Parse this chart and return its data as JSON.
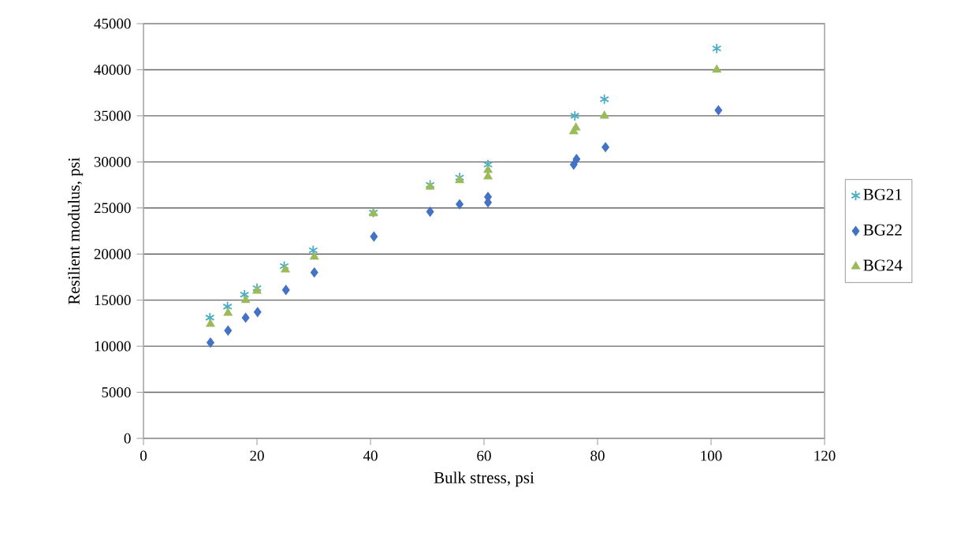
{
  "chart_data": {
    "type": "scatter",
    "xlabel": "Bulk stress, psi",
    "ylabel": "Resilient modulus, psi",
    "xlim": [
      0,
      120
    ],
    "ylim": [
      0,
      45000
    ],
    "xticks": [
      0,
      20,
      40,
      60,
      80,
      100,
      120
    ],
    "yticks": [
      0,
      5000,
      10000,
      15000,
      20000,
      25000,
      30000,
      35000,
      40000,
      45000
    ],
    "grid": "y",
    "legend": "right",
    "series": [
      {
        "name": "BG21",
        "color": "#4bacc6",
        "marker": "cross",
        "x": [
          11.7,
          14.8,
          17.8,
          20,
          24.8,
          29.9,
          40.5,
          50.5,
          55.7,
          60.7,
          76,
          81.2,
          101
        ],
        "values": [
          13100,
          14300,
          15600,
          16300,
          18700,
          20400,
          24500,
          27500,
          28300,
          29700,
          35000,
          36800,
          42300
        ]
      },
      {
        "name": "BG22",
        "color": "#4472c4",
        "marker": "diamond",
        "x": [
          11.8,
          14.9,
          18,
          20.1,
          25.1,
          30.1,
          40.6,
          50.5,
          55.7,
          60.7,
          60.7,
          75.8,
          76.3,
          81.4,
          101.3
        ],
        "values": [
          10400,
          11700,
          13100,
          13700,
          16100,
          18000,
          21900,
          24600,
          25400,
          26200,
          25600,
          29700,
          30300,
          31600,
          35600
        ]
      },
      {
        "name": "BG24",
        "color": "#9bbb59",
        "marker": "triangle",
        "x": [
          11.8,
          14.9,
          18,
          20,
          25,
          30.1,
          40.5,
          50.5,
          55.7,
          60.7,
          60.7,
          75.8,
          76.2,
          81.2,
          101
        ],
        "values": [
          12400,
          13600,
          15000,
          16000,
          18300,
          19700,
          24400,
          27300,
          28000,
          28400,
          29100,
          33300,
          33700,
          35000,
          40000
        ]
      }
    ]
  }
}
